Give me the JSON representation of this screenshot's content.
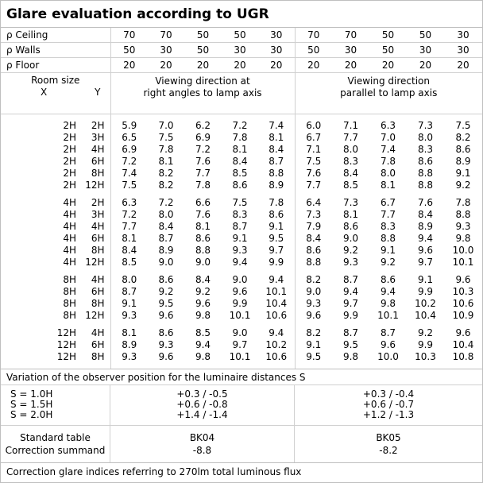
{
  "title": "Glare evaluation according to UGR",
  "header_rows": [
    {
      "label": "ρ Ceiling",
      "values": [
        "70",
        "70",
        "50",
        "50",
        "30",
        "70",
        "70",
        "50",
        "50",
        "30"
      ]
    },
    {
      "label": "ρ Walls",
      "values": [
        "50",
        "30",
        "50",
        "30",
        "30",
        "50",
        "30",
        "50",
        "30",
        "30"
      ]
    },
    {
      "label": "ρ Floor",
      "values": [
        "20",
        "20",
        "20",
        "20",
        "20",
        "20",
        "20",
        "20",
        "20",
        "20"
      ]
    }
  ],
  "room_size": {
    "label": "Room size",
    "x": "X",
    "y": "Y"
  },
  "viewing": {
    "right_angles": [
      "Viewing direction at",
      "right angles to lamp axis"
    ],
    "parallel": [
      "Viewing direction",
      "parallel to lamp axis"
    ]
  },
  "groups": [
    [
      {
        "x": "2H",
        "y": "2H",
        "v": [
          "5.9",
          "7.0",
          "6.2",
          "7.2",
          "7.4",
          "6.0",
          "7.1",
          "6.3",
          "7.3",
          "7.5"
        ]
      },
      {
        "x": "2H",
        "y": "3H",
        "v": [
          "6.5",
          "7.5",
          "6.9",
          "7.8",
          "8.1",
          "6.7",
          "7.7",
          "7.0",
          "8.0",
          "8.2"
        ]
      },
      {
        "x": "2H",
        "y": "4H",
        "v": [
          "6.9",
          "7.8",
          "7.2",
          "8.1",
          "8.4",
          "7.1",
          "8.0",
          "7.4",
          "8.3",
          "8.6"
        ]
      },
      {
        "x": "2H",
        "y": "6H",
        "v": [
          "7.2",
          "8.1",
          "7.6",
          "8.4",
          "8.7",
          "7.5",
          "8.3",
          "7.8",
          "8.6",
          "8.9"
        ]
      },
      {
        "x": "2H",
        "y": "8H",
        "v": [
          "7.4",
          "8.2",
          "7.7",
          "8.5",
          "8.8",
          "7.6",
          "8.4",
          "8.0",
          "8.8",
          "9.1"
        ]
      },
      {
        "x": "2H",
        "y": "12H",
        "v": [
          "7.5",
          "8.2",
          "7.8",
          "8.6",
          "8.9",
          "7.7",
          "8.5",
          "8.1",
          "8.8",
          "9.2"
        ]
      }
    ],
    [
      {
        "x": "4H",
        "y": "2H",
        "v": [
          "6.3",
          "7.2",
          "6.6",
          "7.5",
          "7.8",
          "6.4",
          "7.3",
          "6.7",
          "7.6",
          "7.8"
        ]
      },
      {
        "x": "4H",
        "y": "3H",
        "v": [
          "7.2",
          "8.0",
          "7.6",
          "8.3",
          "8.6",
          "7.3",
          "8.1",
          "7.7",
          "8.4",
          "8.8"
        ]
      },
      {
        "x": "4H",
        "y": "4H",
        "v": [
          "7.7",
          "8.4",
          "8.1",
          "8.7",
          "9.1",
          "7.9",
          "8.6",
          "8.3",
          "8.9",
          "9.3"
        ]
      },
      {
        "x": "4H",
        "y": "6H",
        "v": [
          "8.1",
          "8.7",
          "8.6",
          "9.1",
          "9.5",
          "8.4",
          "9.0",
          "8.8",
          "9.4",
          "9.8"
        ]
      },
      {
        "x": "4H",
        "y": "8H",
        "v": [
          "8.4",
          "8.9",
          "8.8",
          "9.3",
          "9.7",
          "8.6",
          "9.2",
          "9.1",
          "9.6",
          "10.0"
        ]
      },
      {
        "x": "4H",
        "y": "12H",
        "v": [
          "8.5",
          "9.0",
          "9.0",
          "9.4",
          "9.9",
          "8.8",
          "9.3",
          "9.2",
          "9.7",
          "10.1"
        ]
      }
    ],
    [
      {
        "x": "8H",
        "y": "4H",
        "v": [
          "8.0",
          "8.6",
          "8.4",
          "9.0",
          "9.4",
          "8.2",
          "8.7",
          "8.6",
          "9.1",
          "9.6"
        ]
      },
      {
        "x": "8H",
        "y": "6H",
        "v": [
          "8.7",
          "9.2",
          "9.2",
          "9.6",
          "10.1",
          "9.0",
          "9.4",
          "9.4",
          "9.9",
          "10.3"
        ]
      },
      {
        "x": "8H",
        "y": "8H",
        "v": [
          "9.1",
          "9.5",
          "9.6",
          "9.9",
          "10.4",
          "9.3",
          "9.7",
          "9.8",
          "10.2",
          "10.6"
        ]
      },
      {
        "x": "8H",
        "y": "12H",
        "v": [
          "9.3",
          "9.6",
          "9.8",
          "10.1",
          "10.6",
          "9.6",
          "9.9",
          "10.1",
          "10.4",
          "10.9"
        ]
      }
    ],
    [
      {
        "x": "12H",
        "y": "4H",
        "v": [
          "8.1",
          "8.6",
          "8.5",
          "9.0",
          "9.4",
          "8.2",
          "8.7",
          "8.7",
          "9.2",
          "9.6"
        ]
      },
      {
        "x": "12H",
        "y": "6H",
        "v": [
          "8.9",
          "9.3",
          "9.4",
          "9.7",
          "10.2",
          "9.1",
          "9.5",
          "9.6",
          "9.9",
          "10.4"
        ]
      },
      {
        "x": "12H",
        "y": "8H",
        "v": [
          "9.3",
          "9.6",
          "9.8",
          "10.1",
          "10.6",
          "9.5",
          "9.8",
          "10.0",
          "10.3",
          "10.8"
        ]
      }
    ]
  ],
  "variation": {
    "title": "Variation of the observer position for the luminaire distances S",
    "rows": [
      {
        "s": "S = 1.0H",
        "a": "+0.3 / -0.5",
        "b": "+0.3 / -0.4"
      },
      {
        "s": "S = 1.5H",
        "a": "+0.6 / -0.8",
        "b": "+0.6 / -0.7"
      },
      {
        "s": "S = 2.0H",
        "a": "+1.4 / -1.4",
        "b": "+1.2 / -1.3"
      }
    ]
  },
  "standard": {
    "label1": "Standard table",
    "label2": "Correction summand",
    "a_table": "BK04",
    "a_corr": "-8.8",
    "b_table": "BK05",
    "b_corr": "-8.2"
  },
  "footer": "Correction glare indices referring to 270lm total luminous flux"
}
